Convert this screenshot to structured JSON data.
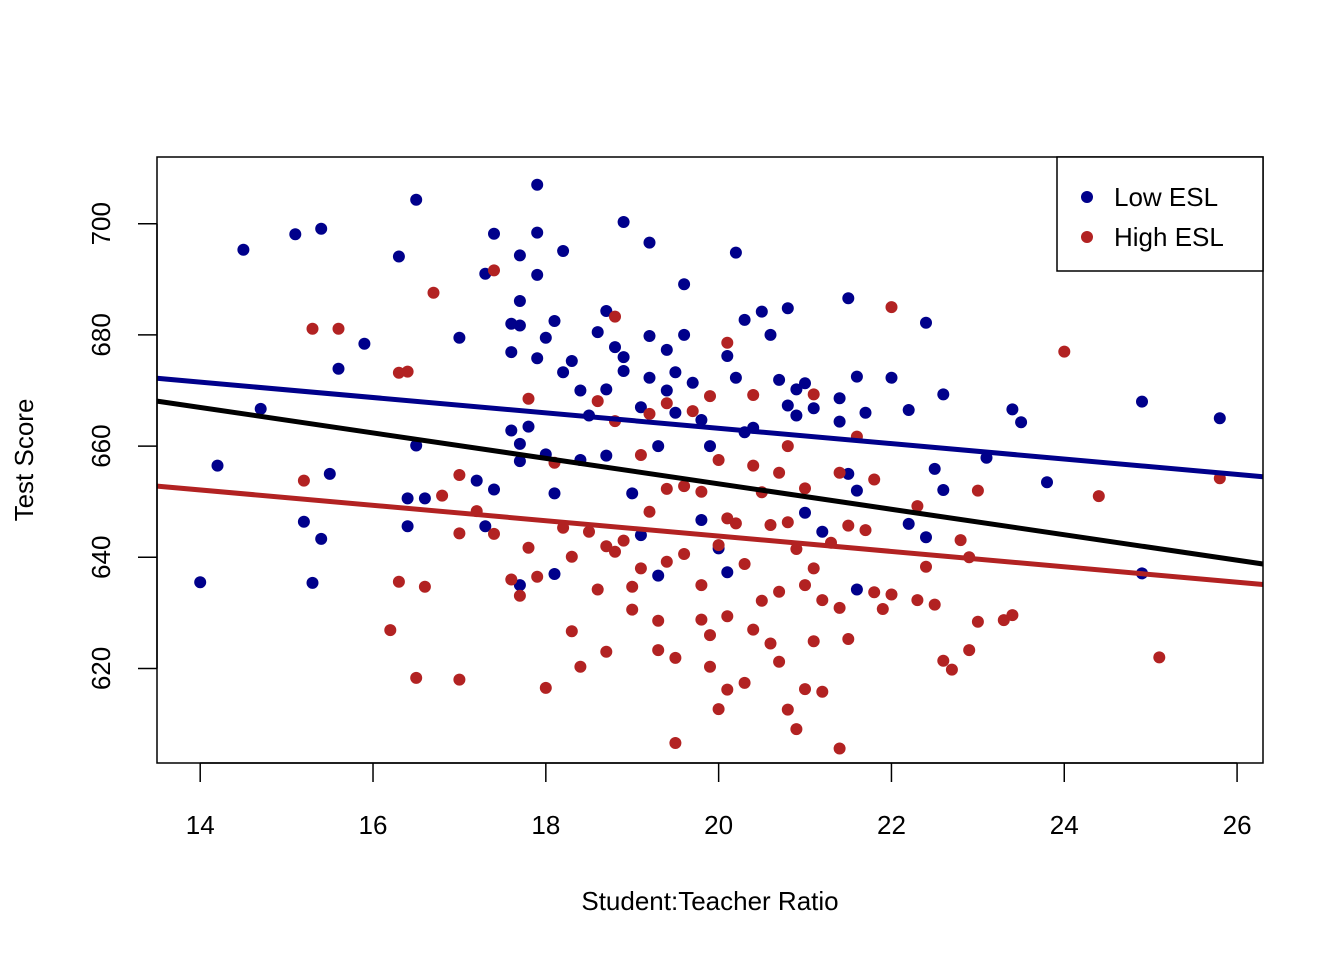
{
  "chart_data": {
    "type": "scatter",
    "title": "",
    "xlabel": "Student:Teacher Ratio",
    "ylabel": "Test Score",
    "xlim": [
      13.5,
      26.3
    ],
    "ylim": [
      603,
      712
    ],
    "xticks": [
      "14",
      "16",
      "18",
      "20",
      "22",
      "24",
      "26"
    ],
    "yticks": [
      "620",
      "640",
      "660",
      "680",
      "700"
    ],
    "grid": false,
    "legend_position": "top-right",
    "colors": {
      "low": "#00008B",
      "high": "#B22222",
      "overall": "#000000"
    },
    "series": [
      {
        "name": "Low ESL",
        "color": "#00008B",
        "points": [
          [
            14.0,
            635.5
          ],
          [
            14.2,
            656.5
          ],
          [
            14.5,
            695.3
          ],
          [
            14.7,
            666.7
          ],
          [
            15.1,
            698.1
          ],
          [
            15.2,
            646.4
          ],
          [
            15.3,
            635.4
          ],
          [
            15.4,
            699.1
          ],
          [
            15.4,
            643.3
          ],
          [
            15.5,
            655.0
          ],
          [
            15.6,
            673.9
          ],
          [
            15.9,
            678.4
          ],
          [
            16.3,
            694.1
          ],
          [
            16.4,
            650.6
          ],
          [
            16.4,
            645.6
          ],
          [
            16.5,
            704.3
          ],
          [
            16.5,
            660.1
          ],
          [
            16.6,
            650.6
          ],
          [
            17.0,
            679.5
          ],
          [
            17.2,
            653.8
          ],
          [
            17.3,
            691.0
          ],
          [
            17.3,
            645.6
          ],
          [
            17.4,
            698.2
          ],
          [
            17.4,
            652.2
          ],
          [
            17.6,
            682.0
          ],
          [
            17.6,
            676.9
          ],
          [
            17.6,
            662.8
          ],
          [
            17.7,
            694.3
          ],
          [
            17.7,
            686.1
          ],
          [
            17.7,
            681.7
          ],
          [
            17.7,
            660.4
          ],
          [
            17.7,
            657.3
          ],
          [
            17.7,
            635.0
          ],
          [
            17.8,
            663.5
          ],
          [
            17.9,
            707.0
          ],
          [
            17.9,
            698.4
          ],
          [
            17.9,
            690.8
          ],
          [
            17.9,
            675.8
          ],
          [
            18.0,
            679.5
          ],
          [
            18.0,
            658.5
          ],
          [
            18.1,
            682.5
          ],
          [
            18.1,
            651.5
          ],
          [
            18.1,
            637.0
          ],
          [
            18.2,
            695.1
          ],
          [
            18.2,
            673.3
          ],
          [
            18.3,
            675.3
          ],
          [
            18.4,
            670.0
          ],
          [
            18.4,
            657.5
          ],
          [
            18.5,
            665.5
          ],
          [
            18.6,
            680.5
          ],
          [
            18.7,
            684.3
          ],
          [
            18.7,
            670.2
          ],
          [
            18.7,
            658.3
          ],
          [
            18.8,
            677.8
          ],
          [
            18.9,
            700.3
          ],
          [
            18.9,
            676.0
          ],
          [
            18.9,
            673.5
          ],
          [
            19.0,
            651.5
          ],
          [
            19.1,
            667.0
          ],
          [
            19.1,
            644.0
          ],
          [
            19.2,
            696.6
          ],
          [
            19.2,
            679.8
          ],
          [
            19.2,
            672.3
          ],
          [
            19.3,
            660.0
          ],
          [
            19.3,
            636.7
          ],
          [
            19.4,
            677.3
          ],
          [
            19.4,
            670.0
          ],
          [
            19.5,
            673.3
          ],
          [
            19.5,
            666.0
          ],
          [
            19.6,
            689.1
          ],
          [
            19.6,
            680.0
          ],
          [
            19.7,
            671.4
          ],
          [
            19.8,
            664.7
          ],
          [
            19.8,
            646.7
          ],
          [
            19.9,
            660.0
          ],
          [
            20.0,
            641.6
          ],
          [
            20.1,
            637.3
          ],
          [
            20.1,
            676.2
          ],
          [
            20.2,
            694.8
          ],
          [
            20.2,
            672.3
          ],
          [
            20.3,
            662.5
          ],
          [
            20.3,
            682.7
          ],
          [
            20.4,
            663.3
          ],
          [
            20.5,
            684.2
          ],
          [
            20.6,
            680.0
          ],
          [
            20.7,
            671.9
          ],
          [
            20.8,
            684.8
          ],
          [
            20.8,
            667.3
          ],
          [
            20.9,
            670.2
          ],
          [
            20.9,
            665.5
          ],
          [
            21.0,
            671.3
          ],
          [
            21.0,
            648.0
          ],
          [
            21.1,
            666.8
          ],
          [
            21.2,
            644.6
          ],
          [
            21.4,
            668.6
          ],
          [
            21.4,
            664.4
          ],
          [
            21.5,
            686.6
          ],
          [
            21.5,
            655.0
          ],
          [
            21.6,
            672.5
          ],
          [
            21.6,
            652.0
          ],
          [
            21.6,
            634.2
          ],
          [
            21.7,
            666.0
          ],
          [
            22.0,
            672.3
          ],
          [
            22.2,
            646.0
          ],
          [
            22.2,
            666.5
          ],
          [
            22.4,
            682.2
          ],
          [
            22.4,
            643.6
          ],
          [
            22.5,
            655.9
          ],
          [
            22.6,
            669.3
          ],
          [
            22.6,
            652.1
          ],
          [
            23.1,
            657.9
          ],
          [
            23.4,
            666.6
          ],
          [
            23.5,
            664.3
          ],
          [
            23.8,
            653.5
          ],
          [
            24.9,
            668.0
          ],
          [
            24.9,
            637.1
          ],
          [
            25.8,
            665.0
          ]
        ]
      },
      {
        "name": "High ESL",
        "color": "#B22222",
        "points": [
          [
            15.2,
            653.8
          ],
          [
            15.3,
            681.1
          ],
          [
            15.6,
            681.1
          ],
          [
            16.2,
            626.9
          ],
          [
            16.3,
            673.2
          ],
          [
            16.3,
            635.6
          ],
          [
            16.4,
            673.4
          ],
          [
            16.5,
            618.3
          ],
          [
            16.6,
            634.7
          ],
          [
            16.7,
            687.6
          ],
          [
            16.8,
            651.1
          ],
          [
            17.0,
            654.8
          ],
          [
            17.0,
            644.3
          ],
          [
            17.0,
            618.0
          ],
          [
            17.2,
            648.3
          ],
          [
            17.4,
            691.6
          ],
          [
            17.4,
            644.2
          ],
          [
            17.6,
            636.0
          ],
          [
            17.7,
            633.1
          ],
          [
            17.8,
            668.5
          ],
          [
            17.8,
            641.7
          ],
          [
            17.9,
            636.5
          ],
          [
            18.0,
            616.5
          ],
          [
            18.1,
            657.0
          ],
          [
            18.2,
            645.3
          ],
          [
            18.3,
            640.1
          ],
          [
            18.3,
            626.7
          ],
          [
            18.4,
            620.3
          ],
          [
            18.5,
            644.6
          ],
          [
            18.6,
            668.1
          ],
          [
            18.6,
            634.2
          ],
          [
            18.7,
            642.0
          ],
          [
            18.7,
            623.0
          ],
          [
            18.8,
            683.3
          ],
          [
            18.8,
            664.5
          ],
          [
            18.8,
            641.0
          ],
          [
            18.9,
            643.0
          ],
          [
            19.0,
            634.7
          ],
          [
            19.0,
            630.6
          ],
          [
            19.1,
            658.4
          ],
          [
            19.1,
            638.0
          ],
          [
            19.2,
            665.8
          ],
          [
            19.2,
            648.2
          ],
          [
            19.3,
            628.6
          ],
          [
            19.3,
            623.3
          ],
          [
            19.4,
            667.7
          ],
          [
            19.4,
            652.3
          ],
          [
            19.4,
            639.2
          ],
          [
            19.5,
            621.9
          ],
          [
            19.5,
            606.6
          ],
          [
            19.6,
            652.8
          ],
          [
            19.6,
            640.6
          ],
          [
            19.7,
            666.3
          ],
          [
            19.8,
            651.8
          ],
          [
            19.8,
            628.8
          ],
          [
            19.8,
            635.0
          ],
          [
            19.9,
            669.0
          ],
          [
            19.9,
            626.0
          ],
          [
            19.9,
            620.3
          ],
          [
            20.0,
            657.5
          ],
          [
            20.0,
            642.2
          ],
          [
            20.0,
            612.7
          ],
          [
            20.1,
            678.6
          ],
          [
            20.1,
            647.0
          ],
          [
            20.1,
            616.2
          ],
          [
            20.1,
            629.4
          ],
          [
            20.2,
            646.1
          ],
          [
            20.3,
            638.8
          ],
          [
            20.3,
            617.4
          ],
          [
            20.4,
            669.2
          ],
          [
            20.4,
            656.5
          ],
          [
            20.4,
            627.0
          ],
          [
            20.5,
            632.2
          ],
          [
            20.5,
            651.7
          ],
          [
            20.6,
            645.8
          ],
          [
            20.6,
            624.5
          ],
          [
            20.7,
            655.2
          ],
          [
            20.7,
            633.8
          ],
          [
            20.7,
            621.2
          ],
          [
            20.8,
            660.0
          ],
          [
            20.8,
            646.3
          ],
          [
            20.8,
            612.6
          ],
          [
            20.9,
            641.5
          ],
          [
            20.9,
            609.1
          ],
          [
            21.0,
            652.4
          ],
          [
            21.0,
            635.0
          ],
          [
            21.0,
            616.3
          ],
          [
            21.1,
            669.3
          ],
          [
            21.1,
            638.0
          ],
          [
            21.1,
            624.9
          ],
          [
            21.2,
            632.3
          ],
          [
            21.2,
            615.8
          ],
          [
            21.3,
            642.6
          ],
          [
            21.4,
            655.2
          ],
          [
            21.4,
            630.9
          ],
          [
            21.4,
            605.6
          ],
          [
            21.5,
            645.7
          ],
          [
            21.5,
            625.3
          ],
          [
            21.6,
            661.7
          ],
          [
            21.7,
            644.9
          ],
          [
            21.8,
            633.7
          ],
          [
            21.8,
            654.0
          ],
          [
            21.9,
            630.7
          ],
          [
            22.0,
            685.0
          ],
          [
            22.0,
            633.3
          ],
          [
            22.3,
            649.2
          ],
          [
            22.3,
            632.3
          ],
          [
            22.4,
            638.3
          ],
          [
            22.5,
            631.5
          ],
          [
            22.6,
            621.4
          ],
          [
            22.7,
            619.8
          ],
          [
            22.8,
            643.1
          ],
          [
            22.9,
            623.3
          ],
          [
            22.9,
            640.0
          ],
          [
            23.0,
            628.4
          ],
          [
            23.0,
            652.0
          ],
          [
            23.3,
            628.7
          ],
          [
            23.4,
            629.6
          ],
          [
            24.0,
            677.0
          ],
          [
            24.4,
            651.0
          ],
          [
            25.1,
            622.0
          ],
          [
            25.8,
            654.2
          ]
        ]
      }
    ],
    "regression_lines": [
      {
        "series": "Low ESL",
        "color": "#00008B",
        "x": [
          13.5,
          26.3
        ],
        "y": [
          672.2,
          654.5
        ]
      },
      {
        "series": "overall",
        "color": "#000000",
        "x": [
          13.5,
          26.3
        ],
        "y": [
          668.1,
          638.8
        ]
      },
      {
        "series": "High ESL",
        "color": "#B22222",
        "x": [
          13.5,
          26.3
        ],
        "y": [
          652.8,
          635.1
        ]
      }
    ]
  }
}
